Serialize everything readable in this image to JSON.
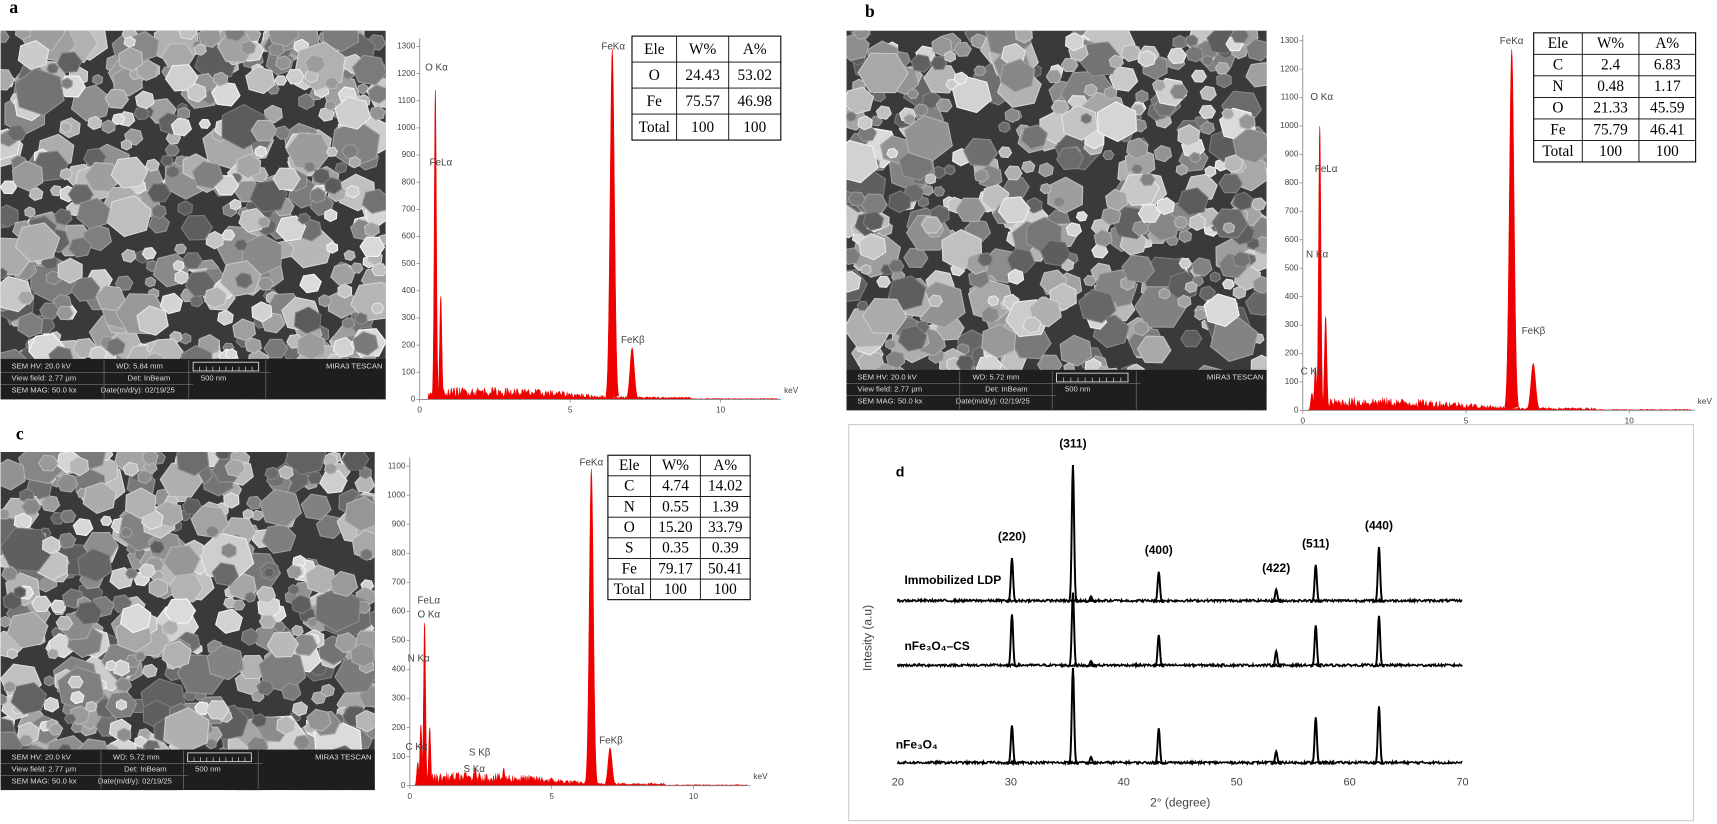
{
  "panels": [
    {
      "label": "a",
      "sem": {
        "info": [
          "SEM HV: 20.0 kV",
          "WD: 5.84 mm",
          "MIRA3 TESCAN",
          "View field: 2.77 µm",
          "Det: InBeam",
          "500 nm",
          "SEM MAG: 50.0 kx",
          "Date(m/d/y): 02/19/25"
        ]
      },
      "edx": {
        "xlim": [
          0,
          12
        ],
        "ylim": [
          0,
          1330
        ],
        "xticks": [
          0,
          5,
          10
        ],
        "yticks": [
          0,
          100,
          200,
          300,
          400,
          500,
          600,
          700,
          800,
          900,
          1000,
          1100,
          1200,
          1300
        ],
        "unit": "keV",
        "peak_labels": [
          "O Kα",
          "FeLα",
          "FeKα",
          "FeKβ"
        ],
        "peaks": [
          [
            0.52,
            1140
          ],
          [
            0.7,
            380
          ],
          [
            6.4,
            1290
          ],
          [
            7.06,
            190
          ]
        ]
      },
      "table": [
        [
          "Ele",
          "W%",
          "A%"
        ],
        [
          "O",
          "24.43",
          "53.02"
        ],
        [
          "Fe",
          "75.57",
          "46.98"
        ],
        [
          "Total",
          "100",
          "100"
        ]
      ]
    },
    {
      "label": "b",
      "sem": {
        "info": [
          "SEM HV: 20.0 kV",
          "WD: 5.72 mm",
          "MIRA3 TESCAN",
          "View field: 2.77 µm",
          "Det: InBeam",
          "500 nm",
          "SEM MAG: 50.0 kx",
          "Date(m/d/y): 02/19/25"
        ]
      },
      "edx": {
        "xlim": [
          0,
          12
        ],
        "ylim": [
          0,
          1320
        ],
        "xticks": [
          0,
          5,
          10
        ],
        "yticks": [
          0,
          100,
          200,
          300,
          400,
          500,
          600,
          700,
          800,
          900,
          1000,
          1100,
          1200,
          1300
        ],
        "unit": "keV",
        "peak_labels": [
          "C Kα",
          "N Kα",
          "O Kα",
          "FeLα",
          "FeKα",
          "FeKβ"
        ],
        "peaks": [
          [
            0.28,
            60
          ],
          [
            0.39,
            150
          ],
          [
            0.52,
            1000
          ],
          [
            0.7,
            330
          ],
          [
            6.4,
            1270
          ],
          [
            7.06,
            165
          ]
        ]
      },
      "table": [
        [
          "Ele",
          "W%",
          "A%"
        ],
        [
          "C",
          "2.4",
          "6.83"
        ],
        [
          "N",
          "0.48",
          "1.17"
        ],
        [
          "O",
          "21.33",
          "45.59"
        ],
        [
          "Fe",
          "75.79",
          "46.41"
        ],
        [
          "Total",
          "100",
          "100"
        ]
      ]
    },
    {
      "label": "c",
      "sem": {
        "info": [
          "SEM HV: 20.0 kV",
          "WD: 5.72 mm",
          "MIRA3 TESCAN",
          "View field: 2.77 µm",
          "Det: InBeam",
          "500 nm",
          "SEM MAG: 50.0 kx",
          "Date(m/d/y): 02/19/25"
        ]
      },
      "edx": {
        "xlim": [
          0,
          12
        ],
        "ylim": [
          0,
          1130
        ],
        "xticks": [
          0,
          5,
          10
        ],
        "yticks": [
          0,
          100,
          200,
          300,
          400,
          500,
          600,
          700,
          800,
          900,
          1000,
          1100
        ],
        "unit": "keV",
        "peak_labels": [
          "FeLα",
          "O Kα",
          "N Kα",
          "C Kα",
          "S Kβ",
          "S Kα",
          "FeKα",
          "FeKβ"
        ],
        "peaks": [
          [
            0.7,
            200
          ],
          [
            0.52,
            560
          ],
          [
            0.39,
            210
          ],
          [
            0.28,
            80
          ],
          [
            2.46,
            40
          ],
          [
            2.31,
            60
          ],
          [
            6.4,
            1090
          ],
          [
            7.06,
            130
          ],
          [
            3.31,
            60
          ]
        ]
      },
      "table": [
        [
          "Ele",
          "W%",
          "A%"
        ],
        [
          "C",
          "4.74",
          "14.02"
        ],
        [
          "N",
          "0.55",
          "1.39"
        ],
        [
          "O",
          "15.20",
          "33.79"
        ],
        [
          "S",
          "0.35",
          "0.39"
        ],
        [
          "Fe",
          "79.17",
          "50.41"
        ],
        [
          "Total",
          "100",
          "100"
        ]
      ]
    }
  ],
  "xrd": {
    "label": "d",
    "y_label": "Intesity (a.u)",
    "x_label": "2° (degree)",
    "xlim": [
      20,
      70
    ],
    "xticks": [
      20,
      30,
      40,
      50,
      60,
      70
    ],
    "peaks": [
      {
        "two_theta": 30.1,
        "hkl": "(220)"
      },
      {
        "two_theta": 35.5,
        "hkl": "(311)"
      },
      {
        "two_theta": 37.1
      },
      {
        "two_theta": 43.1,
        "hkl": "(400)"
      },
      {
        "two_theta": 53.5,
        "hkl": "(422)"
      },
      {
        "two_theta": 57.0,
        "hkl": "(511)"
      },
      {
        "two_theta": 62.6,
        "hkl": "(440)"
      }
    ],
    "series": [
      {
        "name": "Immobilized LDP",
        "intensities": [
          32,
          100,
          4,
          22,
          9,
          27,
          40
        ]
      },
      {
        "name": "nFe₃O₄–CS",
        "intensities": [
          38,
          54,
          4,
          23,
          11,
          30,
          37
        ]
      },
      {
        "name": "nFe₃O₄",
        "intensities": [
          28,
          70,
          5,
          26,
          9,
          34,
          42
        ]
      }
    ]
  }
}
